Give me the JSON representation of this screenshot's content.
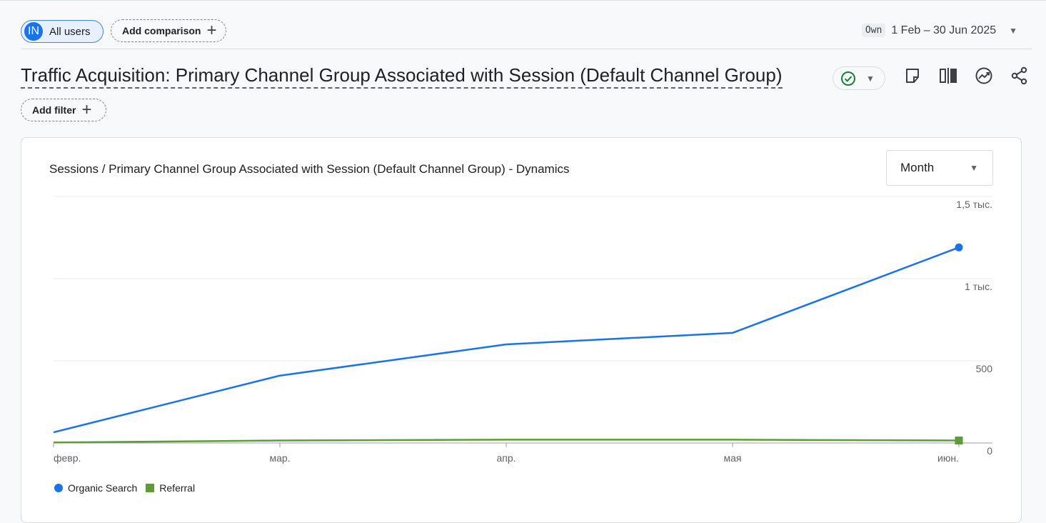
{
  "header": {
    "segment": {
      "avatar": "IN",
      "label": "All users"
    },
    "add_comparison": "Add comparison",
    "date": {
      "tag": "Own",
      "range": "1 Feb – 30 Jun 2025"
    }
  },
  "title": "Traffic Acquisition: Primary Channel Group Associated with Session (Default Channel Group)",
  "add_filter": "Add filter",
  "card": {
    "period_select": "Month"
  },
  "colors": {
    "organic": "#1a73e8",
    "referral": "#5e9c35",
    "accent": "#1a73e8",
    "ok": "#188038"
  },
  "chart_data": {
    "type": "line",
    "title": "Sessions / Primary Channel Group Associated with Session (Default Channel Group) - Dynamics",
    "categories": [
      "февр.",
      "мар.",
      "апр.",
      "мая",
      "июн."
    ],
    "series": [
      {
        "name": "Organic Search",
        "values": [
          65,
          410,
          600,
          670,
          1190
        ]
      },
      {
        "name": "Referral",
        "values": [
          3,
          15,
          20,
          20,
          15
        ]
      }
    ],
    "yticks": [
      "0",
      "500",
      "1 тыс.",
      "1,5 тыс."
    ],
    "ylim": [
      0,
      1500
    ],
    "grid": true,
    "legend": "bottom-left"
  }
}
